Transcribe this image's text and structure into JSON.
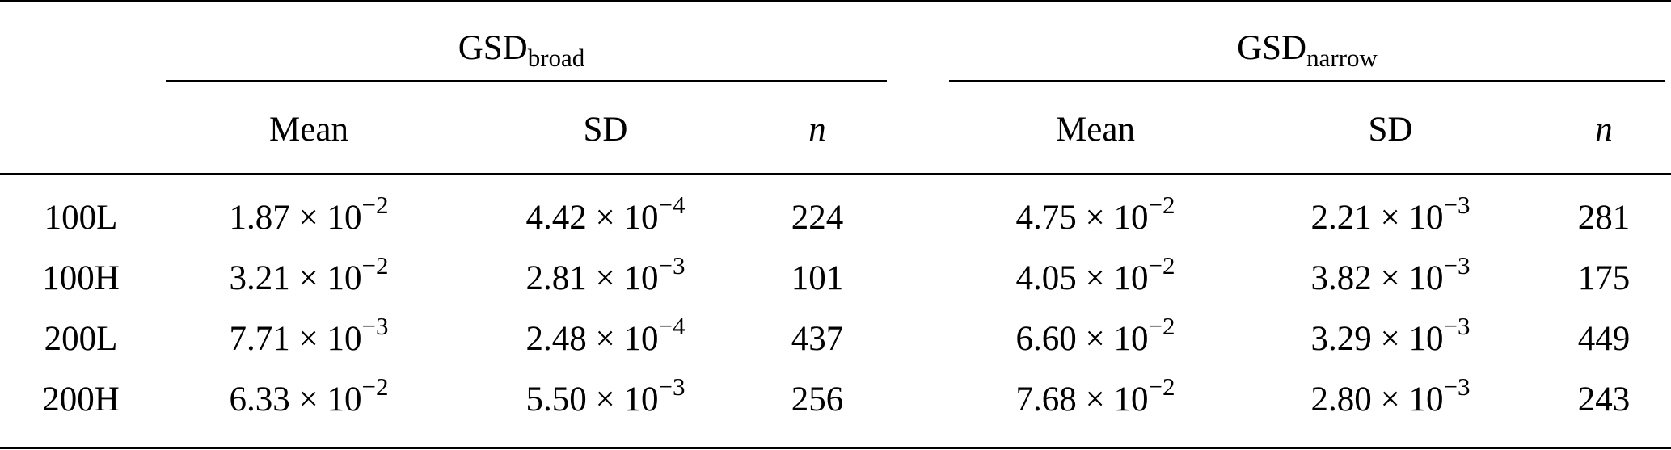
{
  "table": {
    "groups": [
      {
        "base": "GSD",
        "subscript": "broad"
      },
      {
        "base": "GSD",
        "subscript": "narrow"
      }
    ],
    "subheaders": [
      "Mean",
      "SD",
      "n"
    ],
    "rows": [
      {
        "label": "100L",
        "broad": {
          "mean": {
            "m": "1.87",
            "e": "−2"
          },
          "sd": {
            "m": "4.42",
            "e": "−4"
          },
          "n": "224"
        },
        "narrow": {
          "mean": {
            "m": "4.75",
            "e": "−2"
          },
          "sd": {
            "m": "2.21",
            "e": "−3"
          },
          "n": "281"
        }
      },
      {
        "label": "100H",
        "broad": {
          "mean": {
            "m": "3.21",
            "e": "−2"
          },
          "sd": {
            "m": "2.81",
            "e": "−3"
          },
          "n": "101"
        },
        "narrow": {
          "mean": {
            "m": "4.05",
            "e": "−2"
          },
          "sd": {
            "m": "3.82",
            "e": "−3"
          },
          "n": "175"
        }
      },
      {
        "label": "200L",
        "broad": {
          "mean": {
            "m": "7.71",
            "e": "−3"
          },
          "sd": {
            "m": "2.48",
            "e": "−4"
          },
          "n": "437"
        },
        "narrow": {
          "mean": {
            "m": "6.60",
            "e": "−2"
          },
          "sd": {
            "m": "3.29",
            "e": "−3"
          },
          "n": "449"
        }
      },
      {
        "label": "200H",
        "broad": {
          "mean": {
            "m": "6.33",
            "e": "−2"
          },
          "sd": {
            "m": "5.50",
            "e": "−3"
          },
          "n": "256"
        },
        "narrow": {
          "mean": {
            "m": "7.68",
            "e": "−2"
          },
          "sd": {
            "m": "2.80",
            "e": "−3"
          },
          "n": "243"
        }
      }
    ],
    "times": "× 10"
  }
}
